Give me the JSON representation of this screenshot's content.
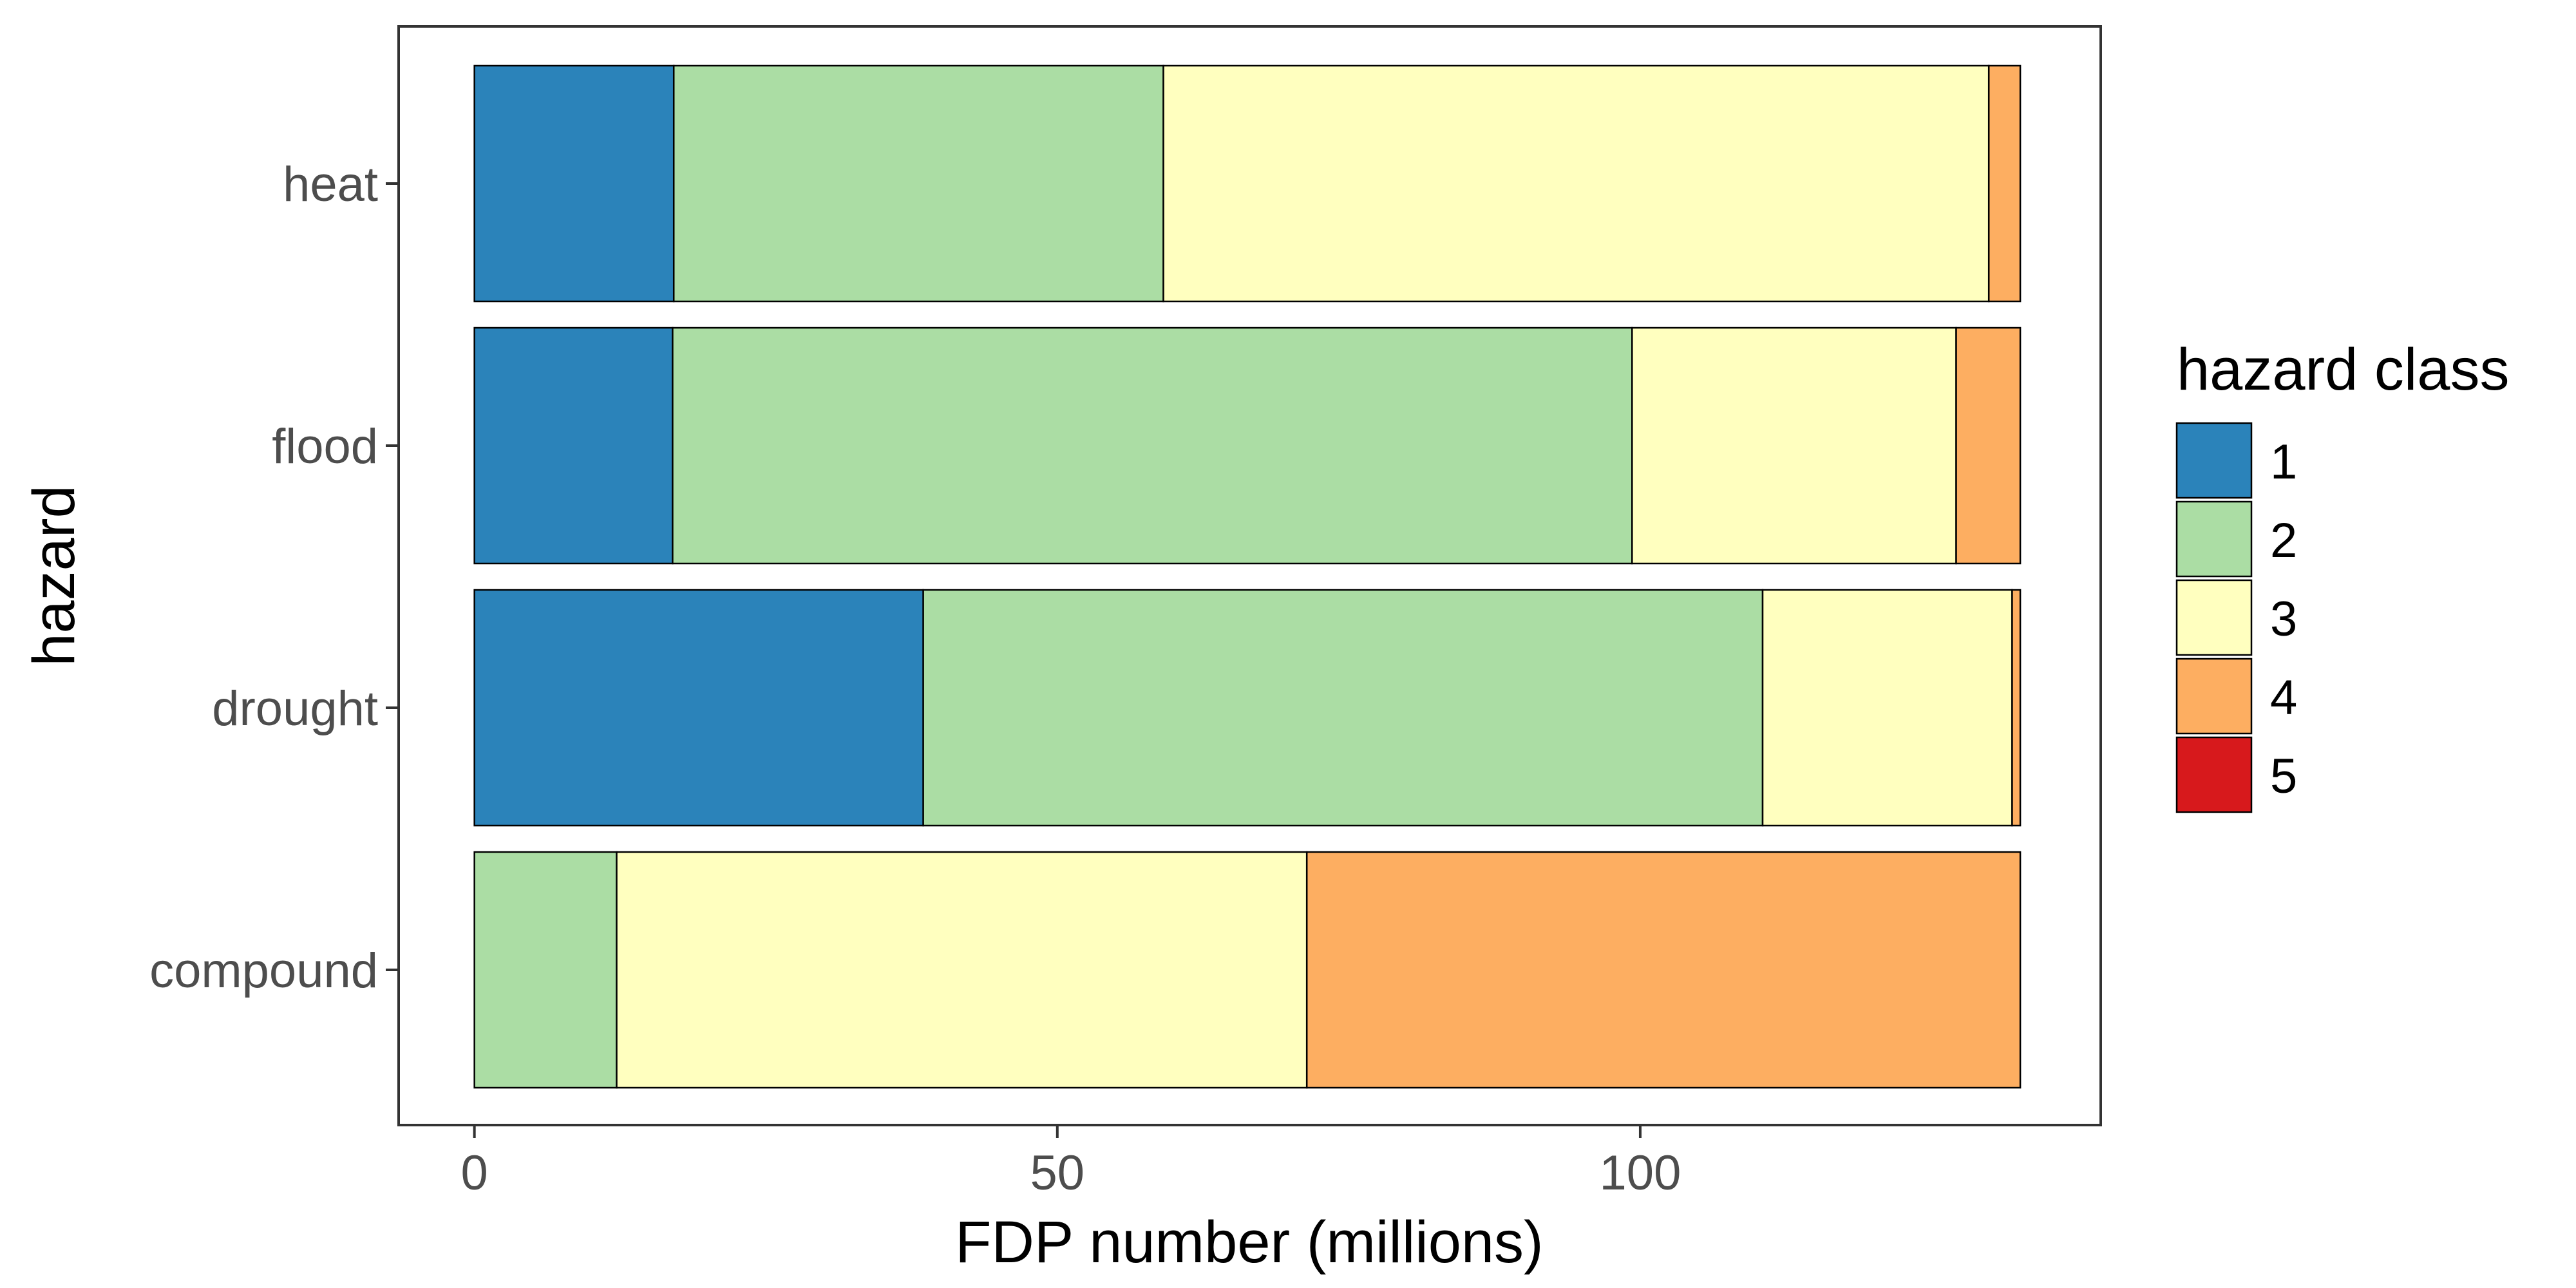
{
  "chart_data": {
    "type": "bar",
    "orientation": "horizontal",
    "stacked": true,
    "xlabel": "FDP number (millions)",
    "ylabel": "hazard",
    "xlim": [
      -6.5,
      139.5
    ],
    "xticks": [
      0,
      50,
      100
    ],
    "grid": false,
    "legend_position": "right",
    "legend_title": "hazard class",
    "categories": [
      "heat",
      "flood",
      "drought",
      "compound"
    ],
    "series": [
      {
        "name": "1",
        "color": "#2b83ba",
        "values": [
          17.1,
          17.0,
          38.5,
          0
        ]
      },
      {
        "name": "2",
        "color": "#abdda4",
        "values": [
          42.0,
          82.3,
          72.0,
          12.2
        ]
      },
      {
        "name": "3",
        "color": "#ffffbf",
        "values": [
          70.8,
          27.8,
          21.4,
          59.2
        ]
      },
      {
        "name": "4",
        "color": "#fdae61",
        "values": [
          2.7,
          5.5,
          0.7,
          61.2
        ]
      },
      {
        "name": "5",
        "color": "#d7191c",
        "values": [
          0,
          0,
          0,
          0
        ]
      }
    ]
  }
}
